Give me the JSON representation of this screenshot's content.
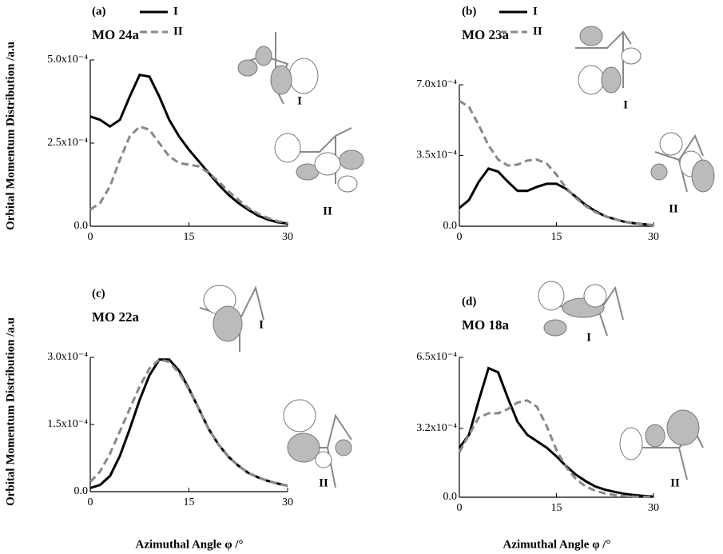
{
  "ylabel": "Orbital Momentum Distribution /a.u",
  "xlabel": "Azimuthal Angle φ /°",
  "chart_data": [
    {
      "type": "line",
      "panel": "(a)",
      "title": "MO 24a",
      "legend": true,
      "inset_labels": [
        "I",
        "II"
      ],
      "x": [
        0,
        1.5,
        3,
        4.5,
        6,
        7.5,
        9,
        10.5,
        12,
        13.5,
        15,
        16.5,
        18,
        19.5,
        21,
        22.5,
        24,
        25.5,
        27,
        28.5,
        30
      ],
      "xlim": [
        0,
        30
      ],
      "xticks": [
        0,
        15,
        30
      ],
      "ylim": [
        0,
        0.0005
      ],
      "yticks": [
        {
          "value": 0,
          "label": "0.0"
        },
        {
          "value": 0.00025,
          "label": "2.5x10⁻⁴"
        },
        {
          "value": 0.0005,
          "label": "5.0x10⁻⁴"
        }
      ],
      "series": [
        {
          "name": "I",
          "color": "#000000",
          "dash": false,
          "values": [
            0.00033,
            0.00032,
            0.0003,
            0.00032,
            0.00039,
            0.000455,
            0.00045,
            0.00039,
            0.00032,
            0.00027,
            0.00023,
            0.000195,
            0.00016,
            0.000125,
            9.5e-05,
            7e-05,
            5e-05,
            3.2e-05,
            2e-05,
            1.2e-05,
            8e-06
          ]
        },
        {
          "name": "II",
          "color": "#888888",
          "dash": true,
          "values": [
            5e-05,
            7e-05,
            0.00012,
            0.0002,
            0.00027,
            0.0003,
            0.00029,
            0.00025,
            0.00021,
            0.00019,
            0.000185,
            0.00018,
            0.00016,
            0.000135,
            0.000105,
            8e-05,
            5.5e-05,
            3.8e-05,
            2.5e-05,
            1.5e-05,
            1e-05
          ]
        }
      ]
    },
    {
      "type": "line",
      "panel": "(b)",
      "title": "MO 23a",
      "legend": true,
      "inset_labels": [
        "I",
        "II"
      ],
      "x": [
        0,
        1.5,
        3,
        4.5,
        6,
        7.5,
        9,
        10.5,
        12,
        13.5,
        15,
        16.5,
        18,
        19.5,
        21,
        22.5,
        24,
        25.5,
        27,
        28.5,
        30
      ],
      "xlim": [
        0,
        30
      ],
      "xticks": [
        0,
        15,
        30
      ],
      "ylim": [
        0,
        0.0007
      ],
      "yticks": [
        {
          "value": 0,
          "label": "0.0"
        },
        {
          "value": 0.00035,
          "label": "3.5x10⁻⁴"
        },
        {
          "value": 0.0007,
          "label": "7.0x10⁻⁴"
        }
      ],
      "series": [
        {
          "name": "I",
          "color": "#000000",
          "dash": false,
          "values": [
            9e-05,
            0.00013,
            0.00022,
            0.000285,
            0.00027,
            0.00022,
            0.000175,
            0.000175,
            0.000195,
            0.00021,
            0.00021,
            0.000185,
            0.000145,
            0.000105,
            7.5e-05,
            5e-05,
            3.5e-05,
            2.2e-05,
            1.5e-05,
            1e-05,
            5e-06
          ]
        },
        {
          "name": "II",
          "color": "#888888",
          "dash": true,
          "values": [
            0.00062,
            0.00059,
            0.0005,
            0.0004,
            0.00033,
            0.0003,
            0.000305,
            0.000325,
            0.00033,
            0.00031,
            0.000255,
            0.00019,
            0.00014,
            0.0001,
            7e-05,
            5e-05,
            3.5e-05,
            2.2e-05,
            1.5e-05,
            1e-05,
            5e-06
          ]
        }
      ]
    },
    {
      "type": "line",
      "panel": "(c)",
      "title": "MO 22a",
      "legend": false,
      "inset_labels": [
        "I",
        "II"
      ],
      "x": [
        0,
        1.5,
        3,
        4.5,
        6,
        7.5,
        9,
        10.5,
        12,
        13.5,
        15,
        16.5,
        18,
        19.5,
        21,
        22.5,
        24,
        25.5,
        27,
        28.5,
        30
      ],
      "xlim": [
        0,
        30
      ],
      "xticks": [
        0,
        15,
        30
      ],
      "ylim": [
        0,
        0.0003
      ],
      "yticks": [
        {
          "value": 0,
          "label": "0.0"
        },
        {
          "value": 0.00015,
          "label": "1.5x10⁻⁴"
        },
        {
          "value": 0.0003,
          "label": "3.0x10⁻⁴"
        }
      ],
      "series": [
        {
          "name": "I",
          "color": "#000000",
          "dash": false,
          "values": [
            8e-06,
            1.5e-05,
            3.5e-05,
            8e-05,
            0.00014,
            0.000205,
            0.00026,
            0.000295,
            0.000295,
            0.00027,
            0.00023,
            0.000185,
            0.00014,
            0.000105,
            7.8e-05,
            5.8e-05,
            4.2e-05,
            3.2e-05,
            2.4e-05,
            1.8e-05,
            1.3e-05
          ]
        },
        {
          "name": "II",
          "color": "#888888",
          "dash": true,
          "values": [
            2.2e-05,
            4.5e-05,
            8.5e-05,
            0.000135,
            0.000185,
            0.000235,
            0.000275,
            0.000295,
            0.00029,
            0.000265,
            0.000228,
            0.000185,
            0.00014,
            0.000105,
            7.8e-05,
            5.8e-05,
            4.2e-05,
            3.2e-05,
            2.4e-05,
            1.8e-05,
            1.3e-05
          ]
        }
      ]
    },
    {
      "type": "line",
      "panel": "(d)",
      "title": "MO 18a",
      "legend": false,
      "inset_labels": [
        "I",
        "II"
      ],
      "x": [
        0,
        1.5,
        3,
        4.5,
        6,
        7.5,
        9,
        10.5,
        12,
        13.5,
        15,
        16.5,
        18,
        19.5,
        21,
        22.5,
        24,
        25.5,
        27,
        28.5,
        30
      ],
      "xlim": [
        0,
        30
      ],
      "xticks": [
        0,
        15,
        30
      ],
      "ylim": [
        0,
        0.00065
      ],
      "yticks": [
        {
          "value": 0,
          "label": "0.0"
        },
        {
          "value": 0.00032,
          "label": "3.2x10⁻⁴"
        },
        {
          "value": 0.00065,
          "label": "6.5x10⁻⁴"
        }
      ],
      "series": [
        {
          "name": "I",
          "color": "#000000",
          "dash": false,
          "values": [
            0.00023,
            0.00029,
            0.00045,
            0.0006,
            0.00058,
            0.00046,
            0.00035,
            0.00029,
            0.00026,
            0.00023,
            0.00019,
            0.000145,
            0.000105,
            7.5e-05,
            5e-05,
            3.5e-05,
            2.5e-05,
            1.6e-05,
            1e-05,
            6e-06,
            3e-06
          ]
        },
        {
          "name": "II",
          "color": "#888888",
          "dash": true,
          "values": [
            0.00021,
            0.00029,
            0.00037,
            0.00039,
            0.00039,
            0.00041,
            0.00044,
            0.00045,
            0.00042,
            0.00033,
            0.00022,
            0.00014,
            8.5e-05,
            5e-05,
            3e-05,
            1.8e-05,
            1e-05,
            6e-06,
            3e-06,
            2e-06,
            1e-06
          ]
        }
      ]
    }
  ]
}
